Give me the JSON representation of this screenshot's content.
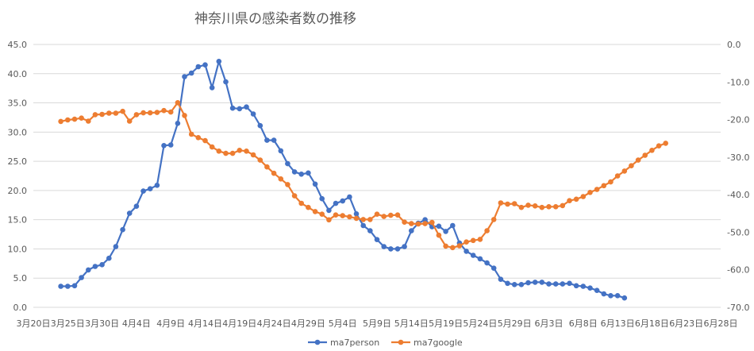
{
  "chart_data": {
    "type": "line",
    "title": "神奈川県の感染者数の推移",
    "grid": true,
    "legend_position": "bottom",
    "x_ticks": [
      "3月20日",
      "3月25日",
      "3月30日",
      "4月4日",
      "4月9日",
      "4月14日",
      "4月19日",
      "4月24日",
      "4月29日",
      "5月4日",
      "5月9日",
      "5月14日",
      "5月19日",
      "5月24日",
      "5月29日",
      "6月3日",
      "6月8日",
      "6月13日",
      "6月18日",
      "6月23日",
      "6月28日"
    ],
    "x_range": [
      "2020-03-20",
      "2020-06-28"
    ],
    "y_left_ticks": [
      "0.0",
      "5.0",
      "10.0",
      "15.0",
      "20.0",
      "25.0",
      "30.0",
      "35.0",
      "40.0",
      "45.0"
    ],
    "y_left_range": [
      0,
      45
    ],
    "y_right_ticks": [
      "0.0",
      "-10.0",
      "-20.0",
      "-30.0",
      "-40.0",
      "-50.0",
      "-60.0",
      "-70.0"
    ],
    "y_right_range": [
      -70,
      0
    ],
    "series": [
      {
        "name": "ma7person",
        "color": "#4472c4",
        "axis": "left",
        "start_date": "2020-03-24",
        "values": [
          3.6,
          3.6,
          3.7,
          5.1,
          6.4,
          7.0,
          7.3,
          8.4,
          10.4,
          13.3,
          16.1,
          17.3,
          19.9,
          20.3,
          20.9,
          27.7,
          27.8,
          31.5,
          39.5,
          40.1,
          41.2,
          41.5,
          37.6,
          42.1,
          38.6,
          34.1,
          34.0,
          34.3,
          33.1,
          31.1,
          28.6,
          28.6,
          26.8,
          24.6,
          23.2,
          22.8,
          23.0,
          21.1,
          18.6,
          16.6,
          17.8,
          18.2,
          18.9,
          16.0,
          14.0,
          13.1,
          11.6,
          10.4,
          10.0,
          10.0,
          10.4,
          13.1,
          14.4,
          15.0,
          13.8,
          13.9,
          13.0,
          14.0,
          11.0,
          9.6,
          8.9,
          8.3,
          7.6,
          6.7,
          4.8,
          4.1,
          3.9,
          3.9,
          4.2,
          4.3,
          4.3,
          4.0,
          4.0,
          4.0,
          4.1,
          3.7,
          3.6,
          3.3,
          2.9,
          2.3,
          2.0,
          2.0,
          1.6
        ]
      },
      {
        "name": "ma7google",
        "color": "#ed7d31",
        "axis": "right",
        "start_date": "2020-03-24",
        "values": [
          -20.5,
          -20.1,
          -19.9,
          -19.6,
          -20.4,
          -18.7,
          -18.6,
          -18.3,
          -18.3,
          -17.8,
          -20.4,
          -18.7,
          -18.2,
          -18.2,
          -18.1,
          -17.6,
          -18.0,
          -15.5,
          -18.9,
          -23.9,
          -24.8,
          -25.6,
          -27.3,
          -28.4,
          -29.0,
          -29.0,
          -28.2,
          -28.4,
          -29.4,
          -30.8,
          -32.6,
          -34.3,
          -35.8,
          -37.3,
          -40.3,
          -42.3,
          -43.4,
          -44.5,
          -45.2,
          -46.7,
          -45.4,
          -45.6,
          -45.9,
          -46.3,
          -46.6,
          -46.6,
          -45.2,
          -45.8,
          -45.5,
          -45.4,
          -47.3,
          -47.7,
          -47.8,
          -47.7,
          -47.4,
          -50.8,
          -53.7,
          -54.1,
          -53.6,
          -52.6,
          -52.2,
          -51.9,
          -49.6,
          -46.6,
          -42.2,
          -42.5,
          -42.4,
          -43.4,
          -42.8,
          -43.0,
          -43.4,
          -43.2,
          -43.2,
          -42.9,
          -41.6,
          -41.2,
          -40.5,
          -39.4,
          -38.6,
          -37.6,
          -36.6,
          -35.0,
          -33.7,
          -32.3,
          -30.8,
          -29.5,
          -28.2,
          -27.0,
          -26.3
        ]
      }
    ]
  }
}
